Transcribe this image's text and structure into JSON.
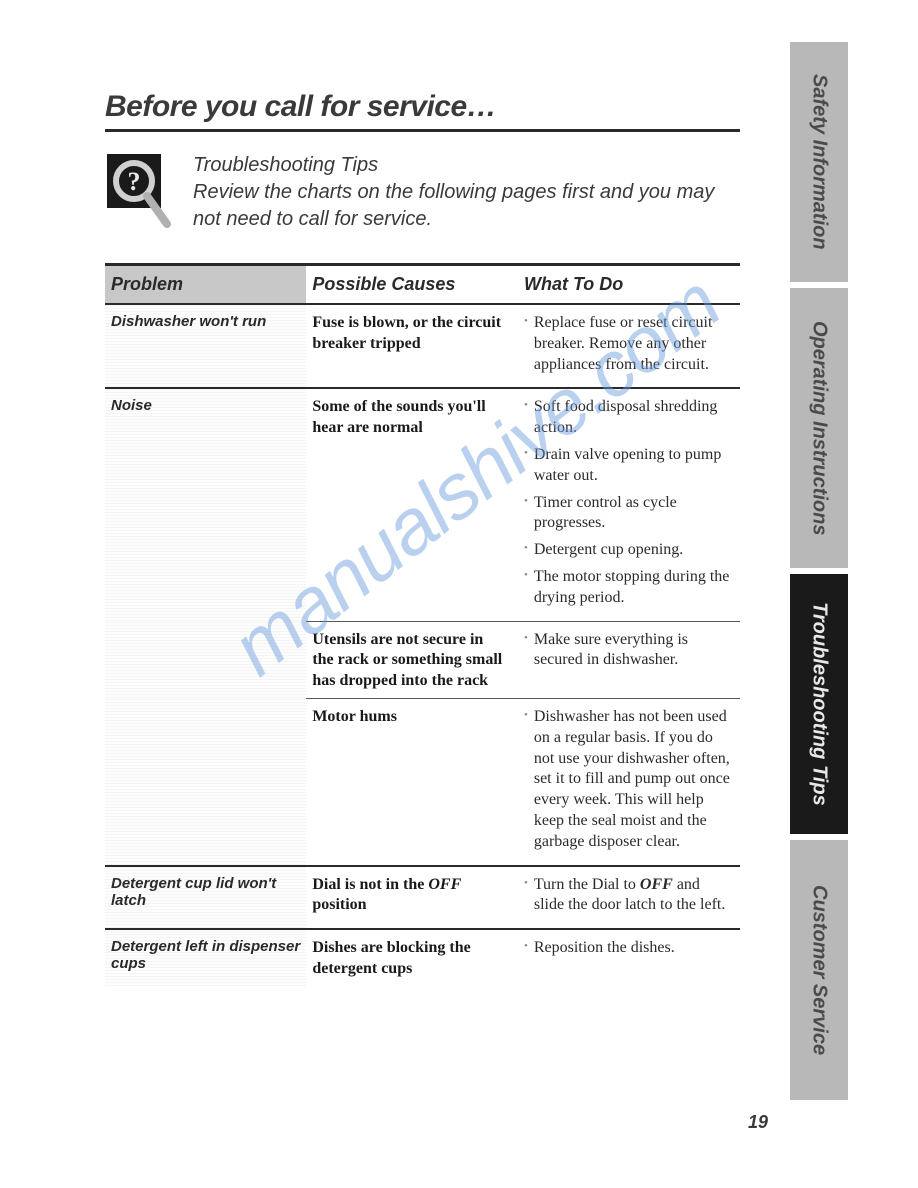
{
  "page": {
    "title": "Before you call for service…",
    "page_number": "19"
  },
  "intro": {
    "heading": "Troubleshooting Tips",
    "body": "Review the charts on the following pages first and you may not need to call for service."
  },
  "table": {
    "headers": {
      "problem": "Problem",
      "cause": "Possible Causes",
      "action": "What To Do"
    },
    "rows": [
      {
        "problem": "Dishwasher won't run",
        "cause": "Fuse is blown, or the circuit breaker tripped",
        "actions": [
          "Replace fuse or reset circuit breaker. Remove any other appliances from the circuit."
        ]
      },
      {
        "problem": "Noise",
        "cause": "Some of the sounds you'll hear are normal",
        "actions": [
          "Soft food disposal shredding action.",
          "Drain valve opening to pump water out.",
          "Timer control as cycle progresses.",
          "Detergent cup opening.",
          "The motor stopping during the drying period."
        ]
      },
      {
        "problem": "",
        "cause": "Utensils are not secure in the rack or something small has dropped into the rack",
        "actions": [
          "Make sure everything is secured in dishwasher."
        ],
        "sub": true
      },
      {
        "problem": "",
        "cause": "Motor hums",
        "actions": [
          "Dishwasher has not been used on a regular basis. If you do not use your dishwasher often, set it to fill and pump out once every week. This will help keep the seal moist and the garbage disposer clear."
        ],
        "sub": true
      },
      {
        "problem": "Detergent cup lid won't latch",
        "cause_html": "Dial is not in the <span class='boldinline'>OFF</span> position",
        "actions_html": [
          "Turn the Dial to <span class='boldinline'>OFF</span> and slide the door latch to the left."
        ]
      },
      {
        "problem": "Detergent left in dispenser cups",
        "cause": "Dishes are blocking the detergent cups",
        "actions": [
          "Reposition the dishes."
        ]
      }
    ]
  },
  "tabs": [
    {
      "label": "Safety Information",
      "style": "light",
      "h": "tab-1"
    },
    {
      "label": "Operating Instructions",
      "style": "light",
      "h": "tab-2"
    },
    {
      "label": "Troubleshooting Tips",
      "style": "dark",
      "h": "tab-3"
    },
    {
      "label": "Customer Service",
      "style": "light",
      "h": "tab-4"
    }
  ],
  "watermark": "manualshive.com",
  "colors": {
    "rule": "#2a2a2a",
    "tab_light_bg": "#b8b8b8",
    "tab_dark_bg": "#1a1a1a",
    "watermark": "#6699dd"
  }
}
